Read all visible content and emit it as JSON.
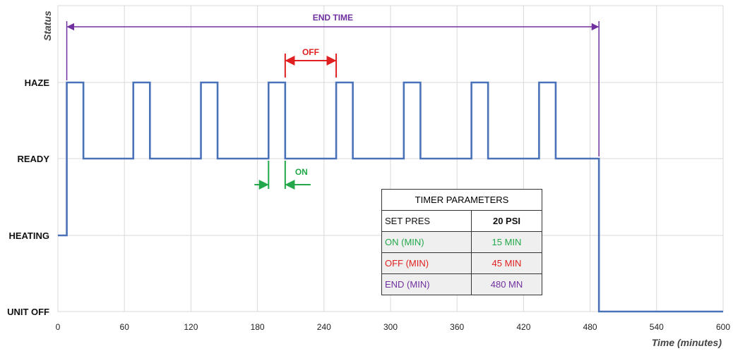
{
  "chart_data": {
    "type": "line",
    "title": "",
    "xlabel": "Time (minutes)",
    "ylabel": "Status",
    "xlim": [
      0,
      600
    ],
    "x_ticks": [
      0,
      60,
      120,
      180,
      240,
      300,
      360,
      420,
      480,
      540,
      600
    ],
    "y_levels": [
      "UNIT OFF",
      "HEATING",
      "READY",
      "HAZE"
    ],
    "grid": true,
    "series": [
      {
        "color": "#4a72b8",
        "points": [
          [
            0,
            "HEATING"
          ],
          [
            8,
            "HEATING"
          ],
          [
            8,
            "HAZE"
          ],
          [
            23,
            "HAZE"
          ],
          [
            23,
            "READY"
          ],
          [
            68,
            "READY"
          ],
          [
            68,
            "HAZE"
          ],
          [
            83,
            "HAZE"
          ],
          [
            83,
            "READY"
          ],
          [
            129,
            "READY"
          ],
          [
            129,
            "HAZE"
          ],
          [
            144,
            "HAZE"
          ],
          [
            144,
            "READY"
          ],
          [
            190,
            "READY"
          ],
          [
            190,
            "HAZE"
          ],
          [
            205,
            "HAZE"
          ],
          [
            205,
            "READY"
          ],
          [
            251,
            "READY"
          ],
          [
            251,
            "HAZE"
          ],
          [
            266,
            "HAZE"
          ],
          [
            266,
            "READY"
          ],
          [
            312,
            "READY"
          ],
          [
            312,
            "HAZE"
          ],
          [
            327,
            "HAZE"
          ],
          [
            327,
            "READY"
          ],
          [
            373,
            "READY"
          ],
          [
            373,
            "HAZE"
          ],
          [
            388,
            "HAZE"
          ],
          [
            388,
            "READY"
          ],
          [
            434,
            "READY"
          ],
          [
            434,
            "HAZE"
          ],
          [
            449,
            "HAZE"
          ],
          [
            449,
            "READY"
          ],
          [
            488,
            "READY"
          ],
          [
            488,
            "UNIT OFF"
          ],
          [
            600,
            "UNIT OFF"
          ]
        ]
      }
    ],
    "annotations": [
      {
        "text": "END TIME",
        "color": "#7030a0",
        "from": 8,
        "to": 488
      },
      {
        "text": "OFF",
        "color": "#e02020",
        "from": 205,
        "to": 251
      },
      {
        "text": "ON",
        "color": "#22a84a",
        "from": 190,
        "to": 205
      }
    ]
  },
  "timer_table": {
    "header": "TIMER PARAMETERS",
    "rows": [
      {
        "label": "SET PRES",
        "value": "20 PSI",
        "color": "#111111"
      },
      {
        "label": "ON  (MIN)",
        "value": "15 MIN",
        "color": "#22a84a"
      },
      {
        "label": "OFF (MIN)",
        "value": "45 MIN",
        "color": "#e02020"
      },
      {
        "label": "END (MIN)",
        "value": "480 MN",
        "color": "#7030a0"
      }
    ]
  }
}
